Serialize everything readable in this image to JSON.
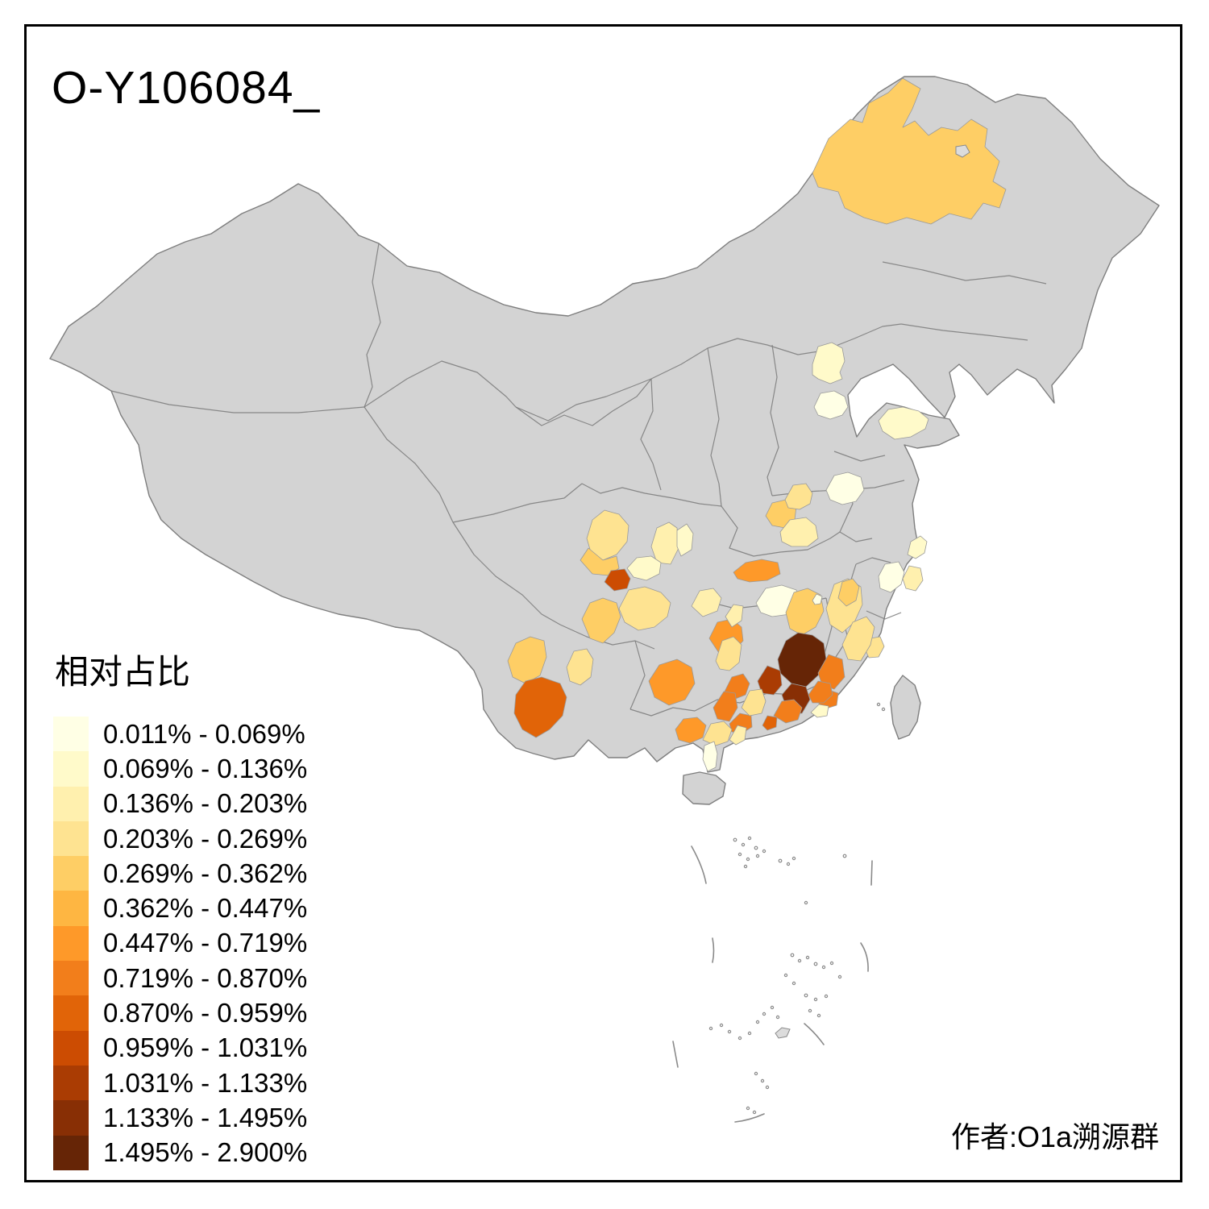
{
  "title": "O-Y106084_",
  "author_credit": "作者:O1a溯源群",
  "legend": {
    "title": "相对占比",
    "classes": [
      {
        "label": "0.011% - 0.069%",
        "color": "#FFFFE5"
      },
      {
        "label": "0.069% - 0.136%",
        "color": "#FFFACA"
      },
      {
        "label": "0.136% - 0.203%",
        "color": "#FFF0AE"
      },
      {
        "label": "0.203% - 0.269%",
        "color": "#FEE391"
      },
      {
        "label": "0.269% - 0.362%",
        "color": "#FECE65"
      },
      {
        "label": "0.362% - 0.447%",
        "color": "#FEB642"
      },
      {
        "label": "0.447% - 0.719%",
        "color": "#FE9929"
      },
      {
        "label": "0.719% - 0.870%",
        "color": "#F27E1B"
      },
      {
        "label": "0.870% - 0.959%",
        "color": "#E16408"
      },
      {
        "label": "0.959% - 1.031%",
        "color": "#CC4C02"
      },
      {
        "label": "1.031% - 1.133%",
        "color": "#AA3C03"
      },
      {
        "label": "1.133% - 1.495%",
        "color": "#882F05"
      },
      {
        "label": "1.495% - 2.900%",
        "color": "#662506"
      }
    ]
  },
  "map": {
    "land_fill": "#D3D3D3",
    "land_border": "#7E7E7E",
    "sea_fill": "#FFFFFF",
    "frame_color": "#000000",
    "regions": [
      {
        "id": "daxinganling",
        "class": 5
      },
      {
        "id": "beijing",
        "class": 2
      },
      {
        "id": "langfang",
        "class": 1
      },
      {
        "id": "jiaodong",
        "class": 2
      },
      {
        "id": "linyi",
        "class": 1
      },
      {
        "id": "luoyang",
        "class": 5
      },
      {
        "id": "zhengzhou",
        "class": 4
      },
      {
        "id": "nanyang",
        "class": 3
      },
      {
        "id": "xiangyang",
        "class": 7
      },
      {
        "id": "yueyang",
        "class": 1
      },
      {
        "id": "shanghai",
        "class": 2
      },
      {
        "id": "zhejiang-west",
        "class": 1
      },
      {
        "id": "zhejiang-east",
        "class": 3
      },
      {
        "id": "wenzhou",
        "class": 4
      },
      {
        "id": "mianyang",
        "class": 4
      },
      {
        "id": "deyang",
        "class": 5
      },
      {
        "id": "chengdu",
        "class": 10
      },
      {
        "id": "bazhong",
        "class": 3
      },
      {
        "id": "guangyuan",
        "class": 2
      },
      {
        "id": "luzhou",
        "class": 5
      },
      {
        "id": "neijiang",
        "class": 4
      },
      {
        "id": "chongqing-west",
        "class": 2
      },
      {
        "id": "dali",
        "class": 5
      },
      {
        "id": "puer",
        "class": 9
      },
      {
        "id": "panzhihua",
        "class": 4
      },
      {
        "id": "guiyang",
        "class": 7
      },
      {
        "id": "yulin-guangxi",
        "class": 7
      },
      {
        "id": "changde",
        "class": 7
      },
      {
        "id": "hunan-mid",
        "class": 3
      },
      {
        "id": "huaihua",
        "class": 4
      },
      {
        "id": "zhuzhou",
        "class": 5
      },
      {
        "id": "jian",
        "class": 4
      },
      {
        "id": "shangrao",
        "class": 5
      },
      {
        "id": "ganzhou",
        "class": 13
      },
      {
        "id": "meizhou",
        "class": 12
      },
      {
        "id": "chenzhou",
        "class": 11
      },
      {
        "id": "yongzhou",
        "class": 8
      },
      {
        "id": "longyan",
        "class": 8
      },
      {
        "id": "zhangzhou",
        "class": 8
      },
      {
        "id": "fujian-coast",
        "class": 4
      },
      {
        "id": "wuzhou",
        "class": 8
      },
      {
        "id": "yunfu",
        "class": 8
      },
      {
        "id": "foshan",
        "class": 9
      },
      {
        "id": "guangzhou",
        "class": 8
      },
      {
        "id": "qingyuan",
        "class": 4
      },
      {
        "id": "jieyang",
        "class": 8
      },
      {
        "id": "shantou",
        "class": 2
      },
      {
        "id": "maoming",
        "class": 4
      },
      {
        "id": "yangjiang",
        "class": 3
      },
      {
        "id": "zhanjiang",
        "class": 1
      },
      {
        "id": "jiujiang-small",
        "class": 1
      },
      {
        "id": "enshi",
        "class": 3
      }
    ]
  }
}
